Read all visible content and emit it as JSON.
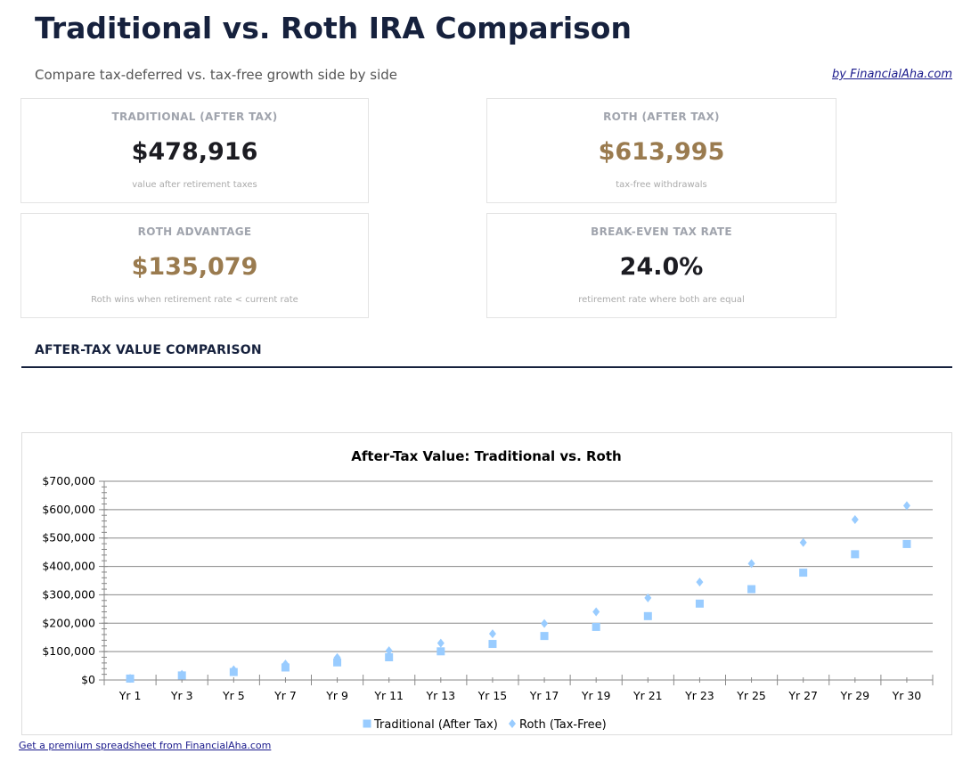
{
  "header": {
    "title": "Traditional vs. Roth IRA Comparison",
    "subtitle": "Compare tax-deferred vs. tax-free growth side by side",
    "byline": "by FinancialAha.com"
  },
  "cards": [
    {
      "label": "TRADITIONAL (AFTER TAX)",
      "value": "$478,916",
      "note": "value after retirement taxes",
      "color": "#1c1c22"
    },
    {
      "label": "ROTH (AFTER TAX)",
      "value": "$613,995",
      "note": "tax-free withdrawals",
      "color": "#9a7b4f"
    },
    {
      "label": "ROTH ADVANTAGE",
      "value": "$135,079",
      "note": "Roth wins when retirement rate < current rate",
      "color": "#9a7b4f"
    },
    {
      "label": "BREAK-EVEN TAX RATE",
      "value": "24.0%",
      "note": "retirement rate where both are equal",
      "color": "#1c1c22"
    }
  ],
  "section_title": "AFTER-TAX VALUE COMPARISON",
  "footer_link": "Get a premium spreadsheet from FinancialAha.com",
  "chart_data": {
    "type": "scatter",
    "title": "After-Tax Value: Traditional vs. Roth",
    "categories": [
      "Yr 1",
      "Yr 3",
      "Yr 5",
      "Yr 7",
      "Yr 9",
      "Yr 11",
      "Yr 13",
      "Yr 15",
      "Yr 17",
      "Yr 19",
      "Yr 21",
      "Yr 23",
      "Yr 25",
      "Yr 27",
      "Yr 29",
      "Yr 30"
    ],
    "ylim": [
      0,
      700000
    ],
    "yticks": [
      "$0",
      "$100,000",
      "$200,000",
      "$300,000",
      "$400,000",
      "$500,000",
      "$600,000",
      "$700,000"
    ],
    "grid": true,
    "legend": "bottom",
    "series": [
      {
        "name": "Traditional (After Tax)",
        "marker": "square",
        "color": "#99ccff",
        "values": [
          5000,
          16000,
          28000,
          44000,
          62000,
          80000,
          101000,
          127000,
          155000,
          187000,
          225000,
          269000,
          320000,
          378000,
          443000,
          478916
        ]
      },
      {
        "name": "Roth (Tax-Free)",
        "marker": "diamond",
        "color": "#99ccff",
        "values": [
          6000,
          20000,
          36000,
          56000,
          79000,
          103000,
          130000,
          163000,
          199000,
          240000,
          289000,
          345000,
          410000,
          484000,
          565000,
          613995
        ]
      }
    ]
  }
}
